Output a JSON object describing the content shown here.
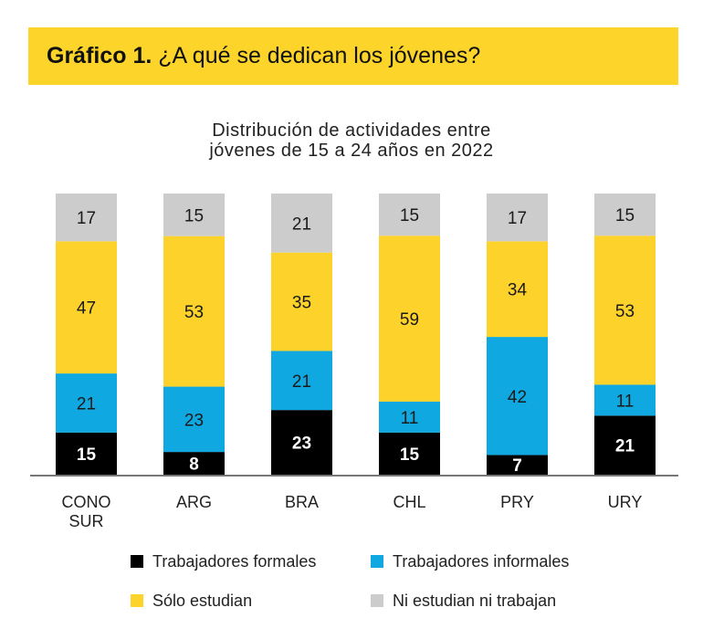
{
  "header": {
    "title_bold": "Gráfico 1.",
    "title_rest": " ¿A qué se dedican los jóvenes?",
    "band_color": "#FDD42A"
  },
  "chart_data": {
    "type": "bar",
    "stacked": true,
    "title": "Distribución de actividades entre jóvenes de 15 a 24 años en 2022",
    "title_lines": [
      "Distribución de actividades entre",
      "jóvenes de 15 a 24 años en 2022"
    ],
    "xlabel": "",
    "ylabel": "",
    "ylim": [
      0,
      100
    ],
    "grid": false,
    "categories": [
      "CONO SUR",
      "ARG",
      "BRA",
      "CHL",
      "PRY",
      "URY"
    ],
    "category_lines": [
      [
        "CONO",
        "SUR"
      ],
      [
        "ARG"
      ],
      [
        "BRA"
      ],
      [
        "CHL"
      ],
      [
        "PRY"
      ],
      [
        "URY"
      ]
    ],
    "series": [
      {
        "name": "Trabajadores formales",
        "color": "#000000",
        "label_color": "#ffffff",
        "values": [
          15,
          8,
          23,
          15,
          7,
          21
        ]
      },
      {
        "name": "Trabajadores informales",
        "color": "#0FA8E0",
        "label_color": "#1a1a1a",
        "values": [
          21,
          23,
          21,
          11,
          42,
          11
        ]
      },
      {
        "name": "Sólo estudian",
        "color": "#FDD22A",
        "label_color": "#1a1a1a",
        "values": [
          47,
          53,
          35,
          59,
          34,
          53
        ]
      },
      {
        "name": "Ni estudian ni trabajan",
        "color": "#CCCCCC",
        "label_color": "#1a1a1a",
        "values": [
          17,
          15,
          21,
          15,
          17,
          15
        ]
      }
    ],
    "legend_position": "bottom"
  }
}
